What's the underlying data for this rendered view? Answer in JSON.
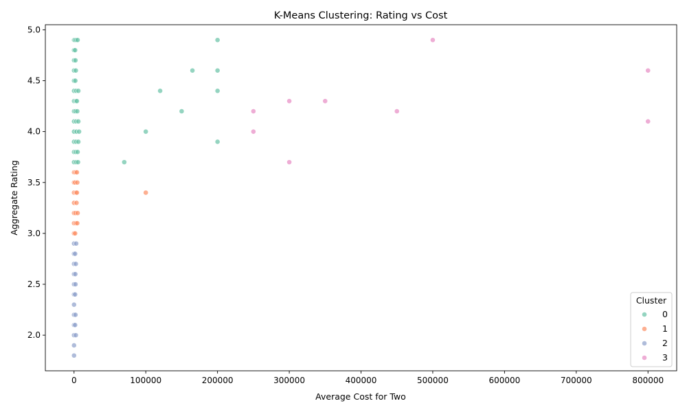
{
  "chart_data": {
    "type": "scatter",
    "title": "K-Means Clustering: Rating vs Cost",
    "xlabel": "Average Cost for Two",
    "ylabel": "Aggregate Rating",
    "xlim": [
      -40000,
      840000
    ],
    "ylim": [
      1.65,
      5.05
    ],
    "xticks": [
      0,
      100000,
      200000,
      300000,
      400000,
      500000,
      600000,
      700000,
      800000
    ],
    "yticks": [
      2.0,
      2.5,
      3.0,
      3.5,
      4.0,
      4.5,
      5.0
    ],
    "grid": false,
    "legend": {
      "title": "Cluster",
      "position": "lower-right"
    },
    "series": [
      {
        "name": "0",
        "color": "#66c2a5",
        "points": [
          [
            0,
            4.9
          ],
          [
            1000,
            4.9
          ],
          [
            3000,
            4.9
          ],
          [
            5000,
            4.9
          ],
          [
            0,
            4.8
          ],
          [
            1500,
            4.8
          ],
          [
            0,
            4.7
          ],
          [
            2000,
            4.7
          ],
          [
            0,
            4.6
          ],
          [
            2500,
            4.6
          ],
          [
            0,
            4.5
          ],
          [
            1800,
            4.5
          ],
          [
            0,
            4.4
          ],
          [
            3000,
            4.4
          ],
          [
            6000,
            4.4
          ],
          [
            0,
            4.3
          ],
          [
            2500,
            4.3
          ],
          [
            4000,
            4.3
          ],
          [
            0,
            4.2
          ],
          [
            2000,
            4.2
          ],
          [
            4500,
            4.2
          ],
          [
            0,
            4.1
          ],
          [
            3000,
            4.1
          ],
          [
            6000,
            4.1
          ],
          [
            0,
            4.0
          ],
          [
            3500,
            4.0
          ],
          [
            7000,
            4.0
          ],
          [
            0,
            3.9
          ],
          [
            3000,
            3.9
          ],
          [
            6000,
            3.9
          ],
          [
            0,
            3.8
          ],
          [
            2500,
            3.8
          ],
          [
            5000,
            3.8
          ],
          [
            0,
            3.7
          ],
          [
            3000,
            3.7
          ],
          [
            5500,
            3.7
          ],
          [
            200000,
            4.9
          ],
          [
            165000,
            4.6
          ],
          [
            200000,
            4.6
          ],
          [
            120000,
            4.4
          ],
          [
            200000,
            4.4
          ],
          [
            150000,
            4.2
          ],
          [
            100000,
            4.0
          ],
          [
            200000,
            3.9
          ],
          [
            70000,
            3.7
          ]
        ]
      },
      {
        "name": "1",
        "color": "#fc8d62",
        "points": [
          [
            0,
            3.6
          ],
          [
            2000,
            3.6
          ],
          [
            4000,
            3.6
          ],
          [
            0,
            3.5
          ],
          [
            1500,
            3.5
          ],
          [
            4500,
            3.5
          ],
          [
            0,
            3.4
          ],
          [
            2500,
            3.4
          ],
          [
            4000,
            3.4
          ],
          [
            0,
            3.3
          ],
          [
            3500,
            3.3
          ],
          [
            0,
            3.2
          ],
          [
            2000,
            3.2
          ],
          [
            5000,
            3.2
          ],
          [
            0,
            3.1
          ],
          [
            2500,
            3.1
          ],
          [
            4500,
            3.1
          ],
          [
            0,
            3.0
          ],
          [
            1500,
            3.0
          ],
          [
            100000,
            3.4
          ]
        ]
      },
      {
        "name": "2",
        "color": "#8da0cb",
        "points": [
          [
            0,
            2.9
          ],
          [
            3000,
            2.9
          ],
          [
            0,
            2.8
          ],
          [
            1500,
            2.8
          ],
          [
            0,
            2.7
          ],
          [
            2500,
            2.7
          ],
          [
            0,
            2.6
          ],
          [
            1800,
            2.6
          ],
          [
            0,
            2.5
          ],
          [
            2000,
            2.5
          ],
          [
            0,
            2.4
          ],
          [
            1500,
            2.4
          ],
          [
            0,
            2.3
          ],
          [
            0,
            2.2
          ],
          [
            2000,
            2.2
          ],
          [
            0,
            2.1
          ],
          [
            1500,
            2.1
          ],
          [
            0,
            2.0
          ],
          [
            2500,
            2.0
          ],
          [
            0,
            1.9
          ],
          [
            0,
            1.8
          ]
        ]
      },
      {
        "name": "3",
        "color": "#e78ac3",
        "points": [
          [
            500000,
            4.9
          ],
          [
            800000,
            4.6
          ],
          [
            300000,
            4.3
          ],
          [
            350000,
            4.3
          ],
          [
            250000,
            4.2
          ],
          [
            450000,
            4.2
          ],
          [
            800000,
            4.1
          ],
          [
            250000,
            4.0
          ],
          [
            300000,
            3.7
          ]
        ]
      }
    ]
  }
}
